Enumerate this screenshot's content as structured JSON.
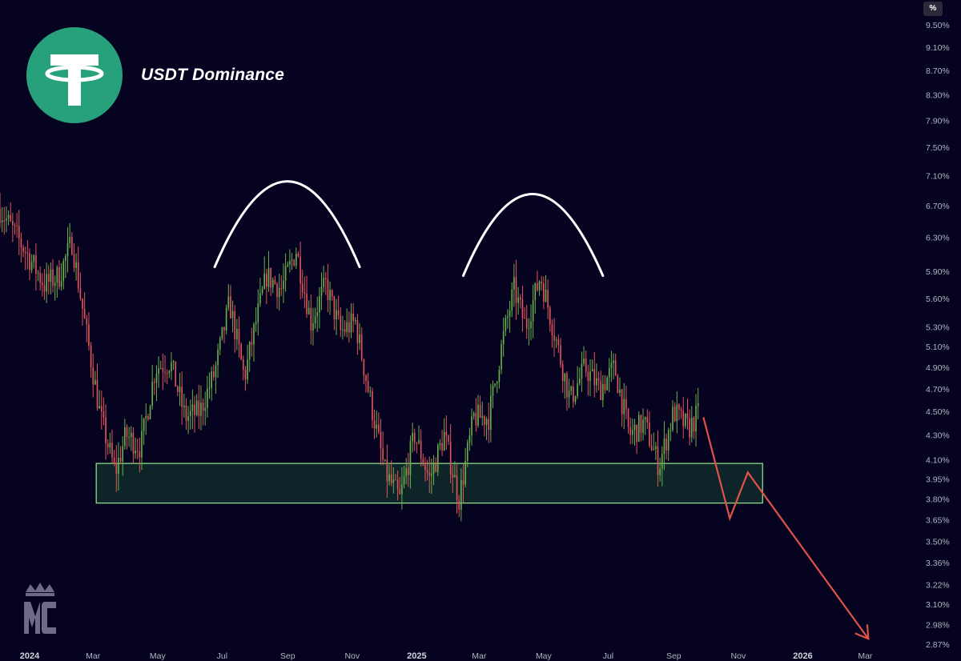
{
  "title": "USDT Dominance",
  "unit_button": "%",
  "colors": {
    "background": "#050320",
    "up": "#6ab04c",
    "down": "#e0555a",
    "support_zone_fill": "#0f2a2a",
    "support_zone_stroke": "#8fd98a",
    "arc": "#ffffff",
    "projection": "#e0524a",
    "axis_text": "#b0b3c0",
    "logo": "#26a17b"
  },
  "icons": {
    "brand_logo": "tether-logo-icon",
    "watermark": "mc-crown-logo-icon"
  },
  "chart_data": {
    "type": "candlestick",
    "title": "USDT Dominance",
    "y_scale": "log",
    "y_ticks": [
      "9.50%",
      "9.10%",
      "8.70%",
      "8.30%",
      "7.90%",
      "7.50%",
      "7.10%",
      "6.70%",
      "6.30%",
      "5.90%",
      "5.60%",
      "5.30%",
      "5.10%",
      "4.90%",
      "4.70%",
      "4.50%",
      "4.30%",
      "4.10%",
      "3.95%",
      "3.80%",
      "3.65%",
      "3.50%",
      "3.36%",
      "3.22%",
      "3.10%",
      "2.98%",
      "2.87%"
    ],
    "x_ticks": [
      {
        "label": "2024",
        "bold": true
      },
      {
        "label": "Mar",
        "bold": false
      },
      {
        "label": "May",
        "bold": false
      },
      {
        "label": "Jul",
        "bold": false
      },
      {
        "label": "Sep",
        "bold": false
      },
      {
        "label": "Nov",
        "bold": false
      },
      {
        "label": "2025",
        "bold": true
      },
      {
        "label": "Mar",
        "bold": false
      },
      {
        "label": "May",
        "bold": false
      },
      {
        "label": "Jul",
        "bold": false
      },
      {
        "label": "Sep",
        "bold": false
      },
      {
        "label": "Nov",
        "bold": false
      },
      {
        "label": "2026",
        "bold": true
      },
      {
        "label": "Mar",
        "bold": false
      }
    ],
    "start_date": "2023-12-04",
    "end_date": "2026-03-31",
    "last_candle_date": "2025-09-24",
    "close_path": [
      [
        "2023-12-04",
        6.65
      ],
      [
        "2023-12-18",
        6.35
      ],
      [
        "2024-01-01",
        6.05
      ],
      [
        "2024-01-15",
        5.75
      ],
      [
        "2024-01-29",
        5.85
      ],
      [
        "2024-02-10",
        6.25
      ],
      [
        "2024-02-22",
        5.35
      ],
      [
        "2024-03-08",
        4.45
      ],
      [
        "2024-03-22",
        4.0
      ],
      [
        "2024-04-01",
        4.3
      ],
      [
        "2024-04-15",
        4.2
      ],
      [
        "2024-04-29",
        4.9
      ],
      [
        "2024-05-13",
        4.95
      ],
      [
        "2024-05-27",
        4.45
      ],
      [
        "2024-06-10",
        4.5
      ],
      [
        "2024-06-24",
        4.85
      ],
      [
        "2024-07-08",
        5.55
      ],
      [
        "2024-07-22",
        4.8
      ],
      [
        "2024-08-01",
        5.3
      ],
      [
        "2024-08-12",
        5.85
      ],
      [
        "2024-08-26",
        5.7
      ],
      [
        "2024-09-09",
        6.15
      ],
      [
        "2024-09-23",
        5.35
      ],
      [
        "2024-10-07",
        5.75
      ],
      [
        "2024-10-21",
        5.25
      ],
      [
        "2024-11-04",
        5.35
      ],
      [
        "2024-11-18",
        4.6
      ],
      [
        "2024-12-02",
        4.0
      ],
      [
        "2024-12-16",
        3.8
      ],
      [
        "2024-12-30",
        4.3
      ],
      [
        "2025-01-13",
        3.95
      ],
      [
        "2025-01-27",
        4.3
      ],
      [
        "2025-02-10",
        3.8
      ],
      [
        "2025-02-24",
        4.45
      ],
      [
        "2025-03-10",
        4.45
      ],
      [
        "2025-03-24",
        5.2
      ],
      [
        "2025-04-03",
        5.7
      ],
      [
        "2025-04-14",
        5.3
      ],
      [
        "2025-04-28",
        5.85
      ],
      [
        "2025-05-12",
        5.2
      ],
      [
        "2025-05-26",
        4.6
      ],
      [
        "2025-06-09",
        4.9
      ],
      [
        "2025-06-23",
        4.7
      ],
      [
        "2025-07-07",
        4.9
      ],
      [
        "2025-07-21",
        4.3
      ],
      [
        "2025-08-04",
        4.4
      ],
      [
        "2025-08-18",
        4.05
      ],
      [
        "2025-09-01",
        4.5
      ],
      [
        "2025-09-15",
        4.35
      ],
      [
        "2025-09-24",
        4.48
      ]
    ],
    "support_zone": {
      "from": "2024-03-04",
      "to": "2025-11-24",
      "low": 3.77,
      "high": 4.07
    },
    "arcs": [
      {
        "from": "2024-06-24",
        "peak": "2024-09-01",
        "to": "2024-11-08",
        "base": 5.95,
        "top": 7.02
      },
      {
        "from": "2025-02-14",
        "peak": "2025-04-20",
        "to": "2025-06-26",
        "base": 5.85,
        "top": 6.85
      }
    ],
    "projection": [
      [
        "2025-09-29",
        4.45
      ],
      [
        "2025-10-24",
        3.66
      ],
      [
        "2025-11-10",
        4.0
      ],
      [
        "2026-03-04",
        2.9
      ]
    ]
  }
}
